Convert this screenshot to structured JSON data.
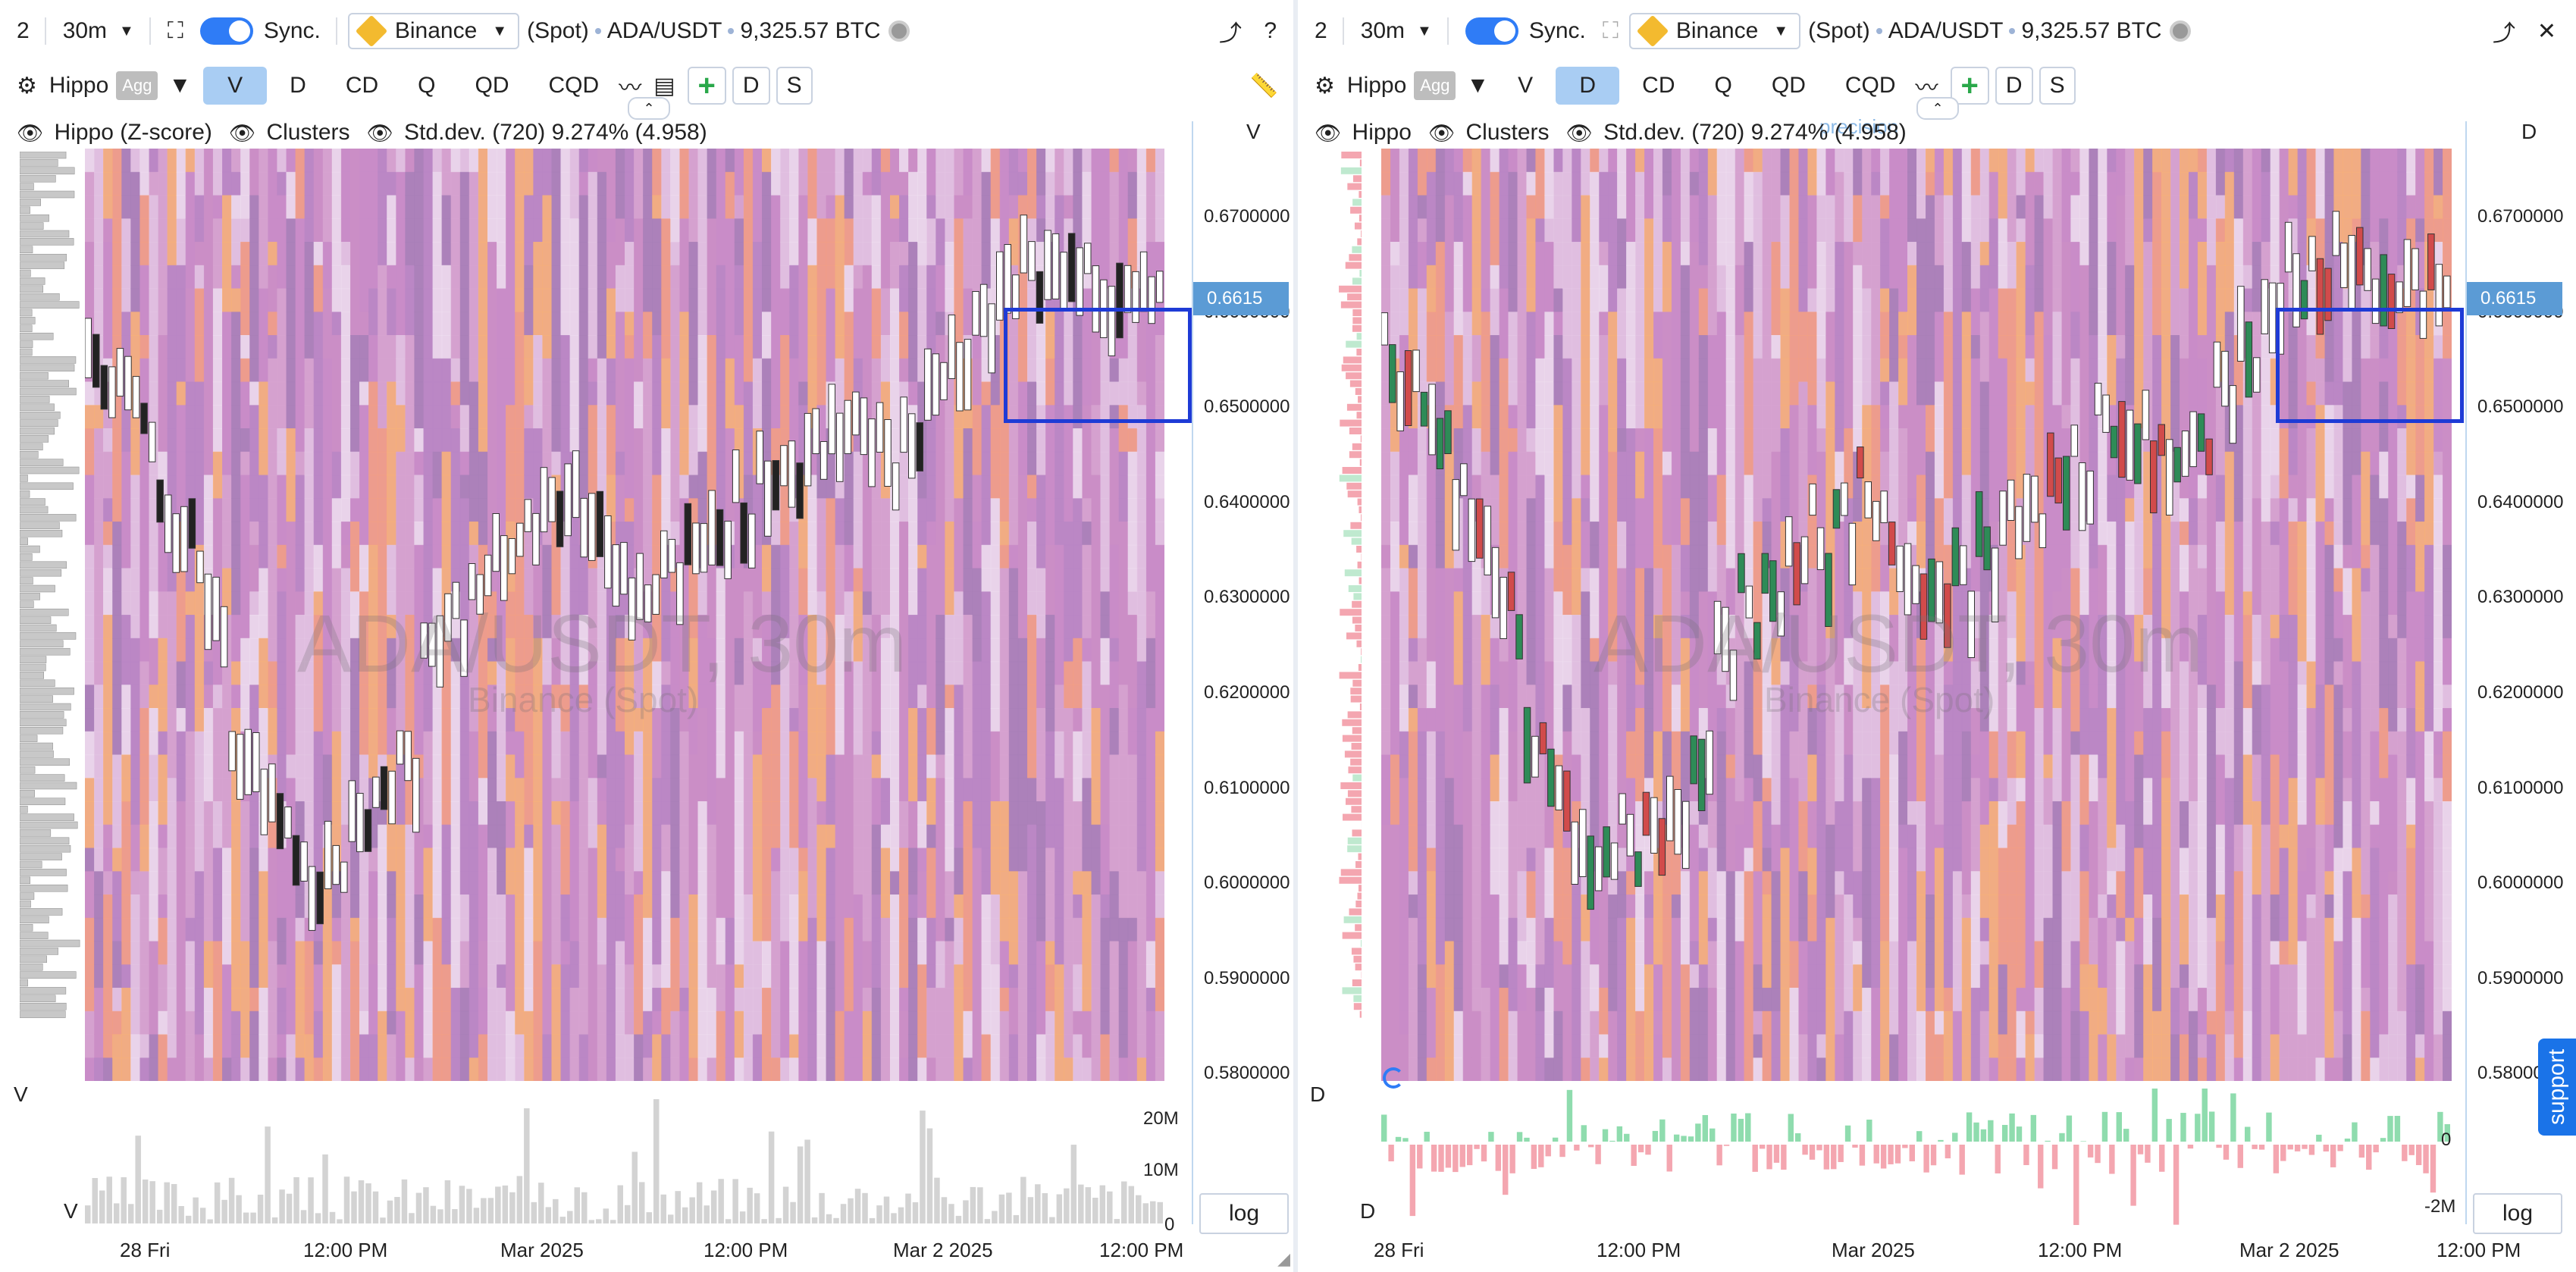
{
  "colors": {
    "accent": "#2f7cf6",
    "active_tab": "#a9cdf3",
    "selection_box": "#1e3bd6",
    "price_tag": "#5b9bd5",
    "heat_base": "#c98cc8",
    "heat_low": "#e9dcef",
    "heat_high": "#f8a96a",
    "delta_positive": "#8fdcae",
    "delta_negative": "#f4a6b0",
    "volume_bar": "#d3d3d3"
  },
  "left": {
    "toolbar": {
      "layout_number": "2",
      "timeframe": "30m",
      "sync_label": "Sync.",
      "exchange": "Binance",
      "market": "(Spot)",
      "pair": "ADA/USDT",
      "volume": "9,325.57 BTC"
    },
    "indicator_bar": {
      "indicator": "Hippo",
      "agg": "Agg",
      "tabs": [
        "V",
        "D",
        "CD",
        "Q",
        "QD",
        "CQD"
      ],
      "active_tab": "V",
      "extra_buttons": [
        "D",
        "S"
      ]
    },
    "legend": {
      "hippo": "Hippo (Z-score)",
      "clusters": "Clusters",
      "stddev": "Std.dev. (720) 9.274% (4.958)"
    },
    "price_axis_title": "V",
    "volume_axis_label": "V",
    "bottom_panel_label": "V",
    "watermark": {
      "title": "ADA/USDT, 30m",
      "subtitle": "Binance (Spot)"
    },
    "volume_ticks": [
      "20M",
      "10M",
      "0"
    ],
    "log_label": "log"
  },
  "right": {
    "toolbar": {
      "layout_number": "2",
      "timeframe": "30m",
      "sync_label": "Sync.",
      "exchange": "Binance",
      "market": "(Spot)",
      "pair": "ADA/USDT",
      "volume": "9,325.57 BTC"
    },
    "indicator_bar": {
      "indicator": "Hippo",
      "agg": "Agg",
      "tabs": [
        "V",
        "D",
        "CD",
        "Q",
        "QD",
        "CQD"
      ],
      "active_tab": "D",
      "extra_buttons": [
        "D",
        "S"
      ]
    },
    "legend": {
      "hippo": "Hippo",
      "clusters": "Clusters",
      "stddev": "Std.dev. (720) 9.274% (4.958)",
      "overlay_text": "precision"
    },
    "price_axis_title": "D",
    "volume_axis_label": "D",
    "bottom_panel_label": "D",
    "watermark": {
      "title": "ADA/USDT, 30m",
      "subtitle": "Binance (Spot)"
    },
    "delta_ticks": [
      "0",
      "-2M"
    ],
    "log_label": "log",
    "support_label": "support"
  },
  "price_axis": {
    "labels": [
      "0.6700000",
      "0.6600000",
      "0.6500000",
      "0.6400000",
      "0.6300000",
      "0.6200000",
      "0.6100000",
      "0.6000000",
      "0.5900000",
      "0.5800000"
    ],
    "current_price": "0.6615"
  },
  "time_axis": {
    "labels": [
      "28 Fri",
      "12:00 PM",
      "Mar 2025",
      "12:00 PM",
      "Mar 2 2025",
      "12:00 PM"
    ]
  }
}
